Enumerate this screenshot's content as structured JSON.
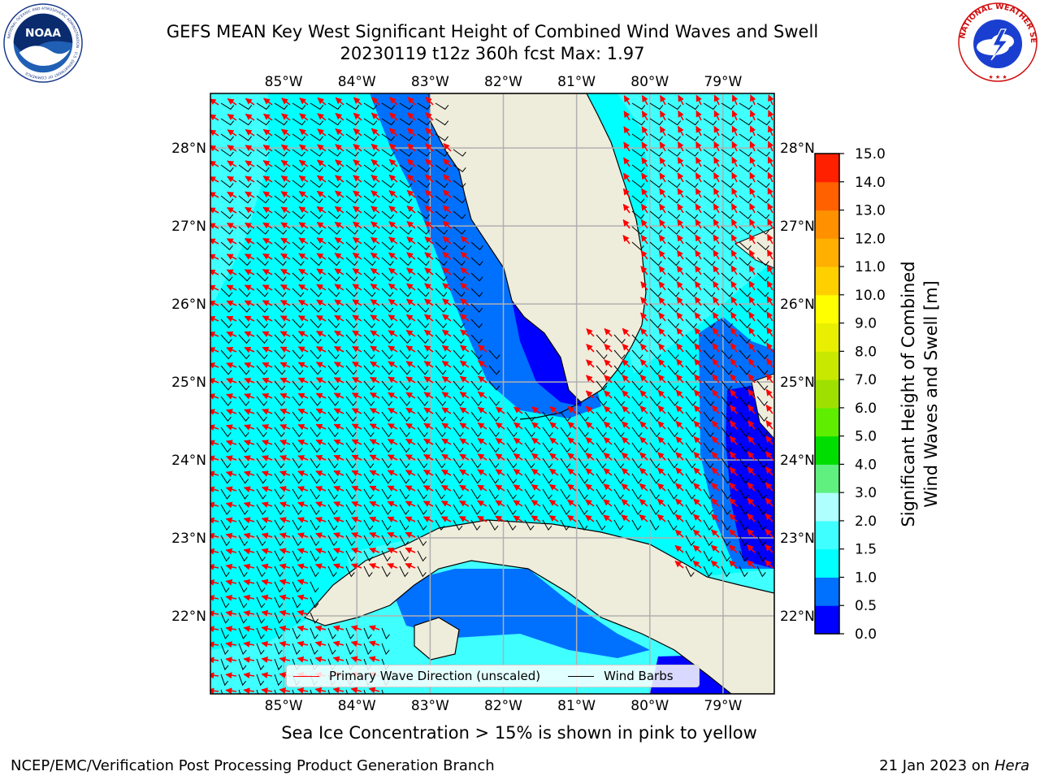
{
  "header": {
    "title_line1": "GEFS MEAN Key West Significant Height of Combined Wind Waves and Swell",
    "title_line2": "20230119 t12z 360h fcst   Max: 1.97"
  },
  "logos": {
    "noaa": {
      "text": "NOAA",
      "ring_text": "NATIONAL OCEANIC AND ATMOSPHERIC ADMINISTRATION · U.S. DEPARTMENT OF COMMERCE",
      "icon": "noaa-logo"
    },
    "nws": {
      "ring_text": "NATIONAL WEATHER SERVICE",
      "icon": "nws-logo"
    }
  },
  "map": {
    "region": "Key West / South Florida / Cuba",
    "lon_ticks": [
      "85°W",
      "84°W",
      "83°W",
      "82°W",
      "81°W",
      "80°W",
      "79°W"
    ],
    "lat_ticks": [
      "28°N",
      "27°N",
      "26°N",
      "25°N",
      "24°N",
      "23°N",
      "22°N"
    ],
    "lon_range": [
      -86.0,
      -78.3
    ],
    "lat_range": [
      21.0,
      28.7
    ],
    "gridlines": true,
    "colors": {
      "land": "#eeecdb",
      "coast": "#000000",
      "grid": "#b0b0b0",
      "arrow": "#ff0000",
      "barb": "#000000"
    }
  },
  "legend": {
    "items": [
      {
        "label": "Primary Wave Direction (unscaled)",
        "color": "#ff0000"
      },
      {
        "label": "Wind Barbs",
        "color": "#000000"
      }
    ]
  },
  "colorbar": {
    "label": "Significant Height of Combined\nWind Waves and Swell [m]",
    "label_line1": "Significant Height of Combined",
    "label_line2": "Wind Waves and Swell [m]",
    "ticks": [
      "0.0",
      "0.5",
      "1.0",
      "1.5",
      "2.0",
      "3.0",
      "4.0",
      "5.0",
      "6.0",
      "7.0",
      "8.0",
      "9.0",
      "10.0",
      "11.0",
      "12.0",
      "13.0",
      "14.0",
      "15.0"
    ],
    "colors": [
      "#0000ff",
      "#0070ff",
      "#00ffff",
      "#40ffff",
      "#b0ffff",
      "#60f080",
      "#00dd00",
      "#60ee00",
      "#a0e000",
      "#c8e800",
      "#e8ef00",
      "#ffff00",
      "#ffd000",
      "#ffb000",
      "#ff9000",
      "#ff6000",
      "#ff2000"
    ]
  },
  "chart_data": {
    "type": "heatmap",
    "title": "GEFS MEAN Key West Significant Height of Combined Wind Waves and Swell",
    "max_value": 1.97,
    "units": "m",
    "dominant_range": [
      1.0,
      1.5
    ],
    "notes_shown": [
      "Max: 1.97"
    ]
  },
  "footer": {
    "note": "Sea Ice Concentration > 15% is shown in pink to yellow",
    "left": "NCEP/EMC/Verification Post Processing Product Generation Branch",
    "right_prefix": "21 Jan 2023 on ",
    "right_host": "Hera"
  }
}
